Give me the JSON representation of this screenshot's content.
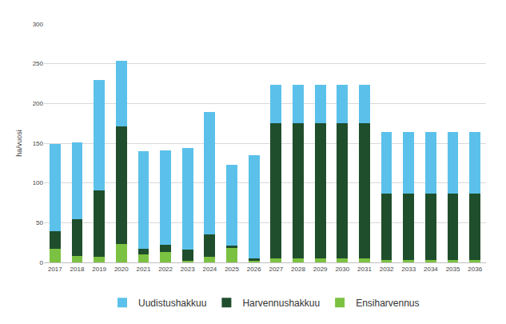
{
  "chart_data": {
    "type": "bar",
    "stacked": true,
    "y_label": "ha/vuosi",
    "categories": [
      "2017",
      "2018",
      "2019",
      "2020",
      "2021",
      "2022",
      "2023",
      "2024",
      "2025",
      "2026",
      "2027",
      "2028",
      "2029",
      "2030",
      "2031",
      "2032",
      "2033",
      "2034",
      "2035",
      "2036"
    ],
    "series": [
      {
        "name": "Ensiharvennus",
        "color": "#7cc242",
        "values": [
          17,
          8,
          7,
          23,
          10,
          13,
          2,
          7,
          18,
          3,
          5,
          5,
          5,
          5,
          5,
          3,
          3,
          3,
          3,
          3
        ]
      },
      {
        "name": "Harvennushakkuu",
        "color": "#1f4e2c",
        "values": [
          22,
          46,
          84,
          148,
          7,
          9,
          14,
          28,
          3,
          2,
          170,
          170,
          170,
          170,
          170,
          84,
          84,
          84,
          84,
          84
        ]
      },
      {
        "name": "Uudistushakkuu",
        "color": "#5bc1ea",
        "values": [
          110,
          97,
          139,
          83,
          123,
          119,
          128,
          154,
          102,
          130,
          48,
          48,
          48,
          48,
          48,
          77,
          77,
          77,
          77,
          77
        ]
      }
    ],
    "ylim": [
      0,
      300
    ],
    "yticks": [
      0,
      50,
      100,
      150,
      200,
      250,
      300
    ],
    "grid": true,
    "legend": "bottom"
  }
}
